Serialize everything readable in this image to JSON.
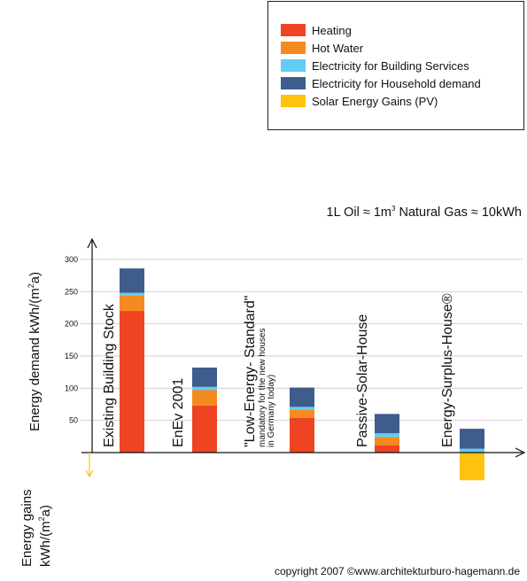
{
  "legend": [
    {
      "label": "Heating",
      "color": "#ee4422"
    },
    {
      "label": "Hot Water",
      "color": "#f58a20"
    },
    {
      "label": "Electricity for Building Services",
      "color": "#62cdf2"
    },
    {
      "label": "Electricity for Household demand",
      "color": "#3e5d8c"
    },
    {
      "label": "Solar Energy Gains (PV)",
      "color": "#ffc20e"
    }
  ],
  "equivalence": {
    "part1": "1L Oil ≈ 1m",
    "sup": "3",
    "part2": " Natural Gas ≈ 10kWh"
  },
  "y_title_demand": {
    "main": "Energy demand kWh/(m",
    "sup": "2",
    "end": "a)"
  },
  "y_title_gains": {
    "line1": "Energy gains",
    "line2_main": "kWh/(m",
    "line2_sup": "2",
    "line2_end": "a)"
  },
  "copyright": "copyright 2007 ©www.architekturburo-hagemann.de",
  "chart_data": {
    "type": "bar",
    "stacked": true,
    "ylim": [
      -45,
      300
    ],
    "yticks": [
      50,
      100,
      150,
      200,
      250,
      300
    ],
    "grid": true,
    "legend_position": "top-right",
    "categories": [
      {
        "label": "Existing Building Stock",
        "sub": []
      },
      {
        "label": "EnEv 2001",
        "sub": []
      },
      {
        "label": "\"Low-Energy- Standard\"",
        "sub": [
          "mandatory for the new houses",
          "in Germany today)"
        ]
      },
      {
        "label": "Passive-Solar-House",
        "sub": []
      },
      {
        "label": "Energy-Surplus-House®",
        "sub": []
      }
    ],
    "series": [
      {
        "name": "Heating",
        "color": "#ee4422",
        "values": [
          220,
          73,
          54,
          11,
          0
        ]
      },
      {
        "name": "Hot Water",
        "color": "#f58a20",
        "values": [
          24,
          24,
          13,
          13,
          0
        ]
      },
      {
        "name": "Electricity for Building Services",
        "color": "#62cdf2",
        "values": [
          4,
          5,
          4,
          6,
          6
        ]
      },
      {
        "name": "Electricity for Household demand",
        "color": "#3e5d8c",
        "values": [
          38,
          30,
          30,
          30,
          31
        ]
      },
      {
        "name": "Solar Energy Gains (PV)",
        "color": "#ffc20e",
        "values": [
          0,
          0,
          0,
          0,
          -43
        ]
      }
    ]
  }
}
